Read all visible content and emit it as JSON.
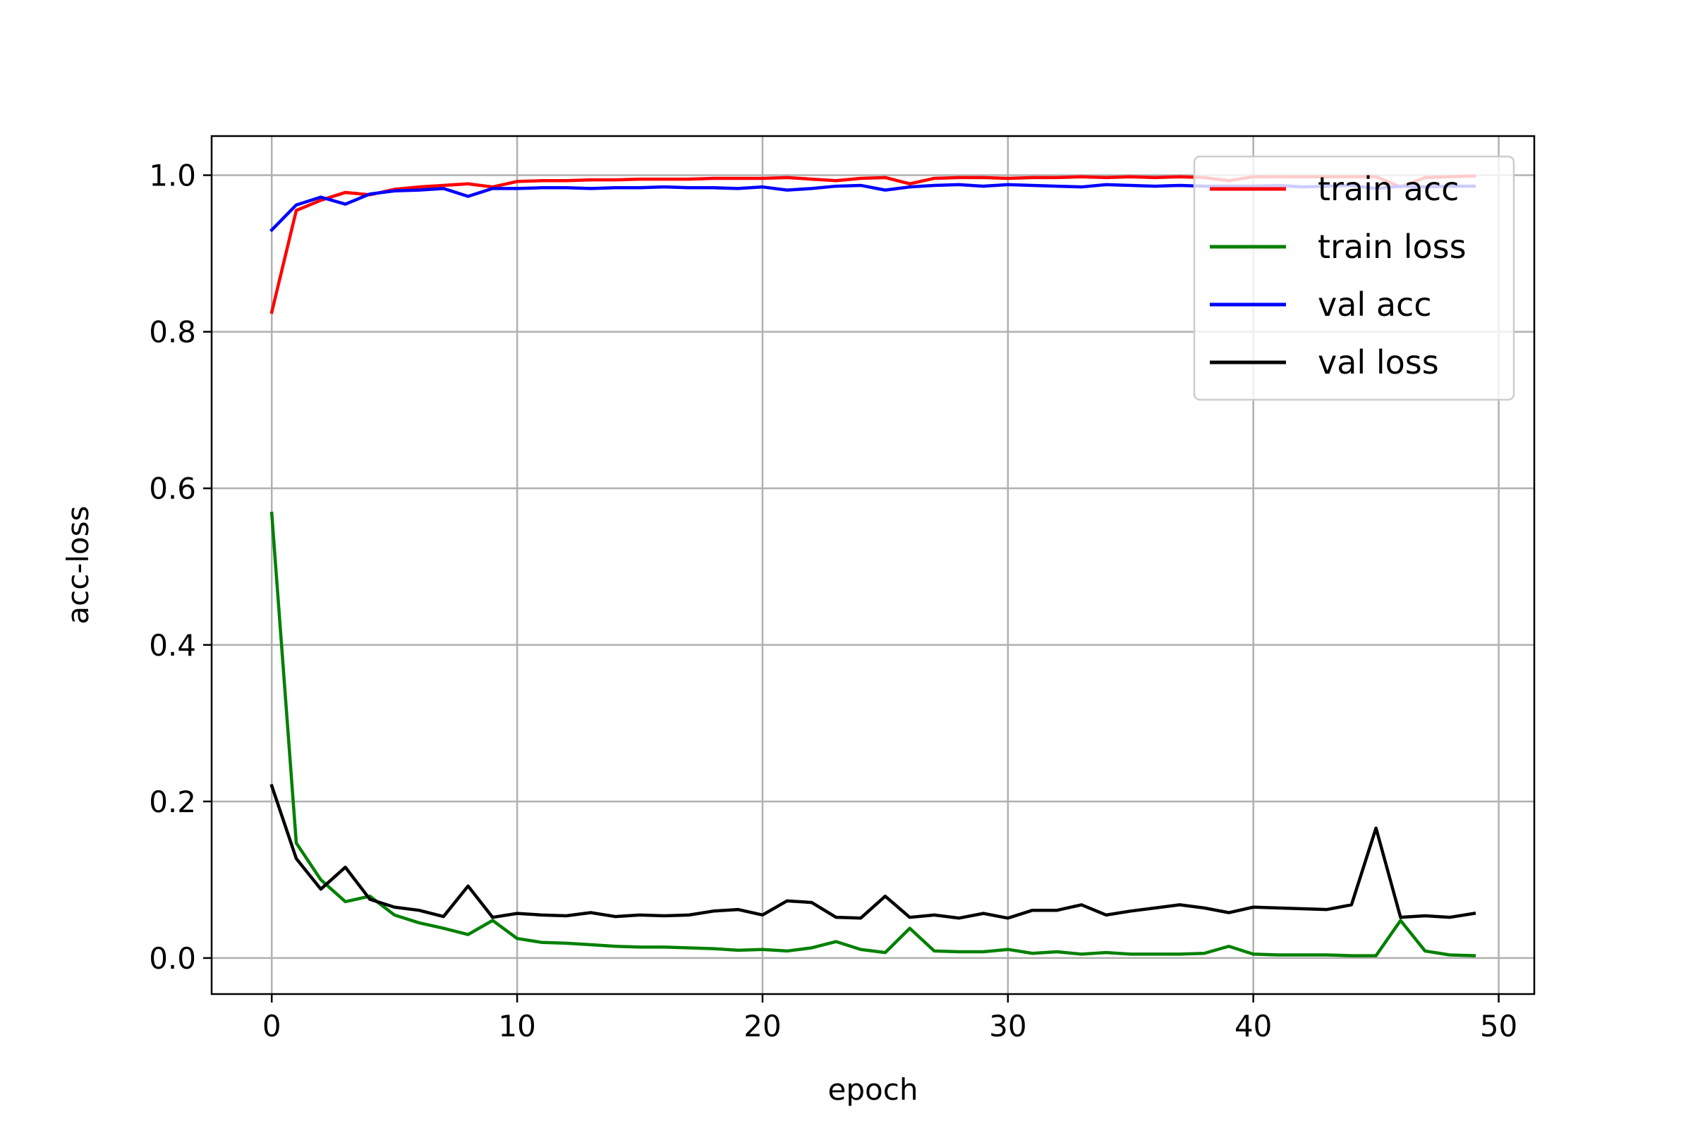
{
  "chart_data": {
    "type": "line",
    "xlabel": "epoch",
    "ylabel": "acc-loss",
    "xlim": [
      -2.45,
      51.45
    ],
    "ylim": [
      -0.046,
      1.05
    ],
    "xticks": [
      0,
      10,
      20,
      30,
      40,
      50
    ],
    "yticks": [
      0.0,
      0.2,
      0.4,
      0.6,
      0.8,
      1.0
    ],
    "xtick_labels": [
      "0",
      "10",
      "20",
      "30",
      "40",
      "50"
    ],
    "ytick_labels": [
      "0.0",
      "0.2",
      "0.4",
      "0.6",
      "0.8",
      "1.0"
    ],
    "grid": true,
    "legend_position": "top-right",
    "x": [
      0,
      1,
      2,
      3,
      4,
      5,
      6,
      7,
      8,
      9,
      10,
      11,
      12,
      13,
      14,
      15,
      16,
      17,
      18,
      19,
      20,
      21,
      22,
      23,
      24,
      25,
      26,
      27,
      28,
      29,
      30,
      31,
      32,
      33,
      34,
      35,
      36,
      37,
      38,
      39,
      40,
      41,
      42,
      43,
      44,
      45,
      46,
      47,
      48,
      49
    ],
    "series": [
      {
        "name": "train acc",
        "color": "#ff0000",
        "values": [
          0.825,
          0.955,
          0.968,
          0.978,
          0.975,
          0.982,
          0.985,
          0.987,
          0.989,
          0.985,
          0.992,
          0.993,
          0.993,
          0.994,
          0.994,
          0.995,
          0.995,
          0.995,
          0.996,
          0.996,
          0.996,
          0.997,
          0.995,
          0.993,
          0.996,
          0.997,
          0.989,
          0.996,
          0.997,
          0.997,
          0.996,
          0.997,
          0.997,
          0.998,
          0.997,
          0.998,
          0.997,
          0.998,
          0.997,
          0.993,
          0.998,
          0.998,
          0.998,
          0.998,
          0.998,
          0.998,
          0.985,
          0.997,
          0.998,
          0.999
        ]
      },
      {
        "name": "train loss",
        "color": "#008000",
        "values": [
          0.568,
          0.147,
          0.1,
          0.072,
          0.079,
          0.055,
          0.045,
          0.038,
          0.03,
          0.048,
          0.025,
          0.02,
          0.019,
          0.017,
          0.015,
          0.014,
          0.014,
          0.013,
          0.012,
          0.01,
          0.011,
          0.009,
          0.013,
          0.021,
          0.011,
          0.007,
          0.038,
          0.009,
          0.008,
          0.008,
          0.011,
          0.006,
          0.008,
          0.005,
          0.007,
          0.005,
          0.005,
          0.005,
          0.006,
          0.015,
          0.005,
          0.004,
          0.004,
          0.004,
          0.003,
          0.003,
          0.048,
          0.009,
          0.004,
          0.003
        ]
      },
      {
        "name": "val acc",
        "color": "#0000ff",
        "values": [
          0.93,
          0.962,
          0.972,
          0.963,
          0.976,
          0.98,
          0.981,
          0.983,
          0.973,
          0.983,
          0.983,
          0.984,
          0.984,
          0.983,
          0.984,
          0.984,
          0.985,
          0.984,
          0.984,
          0.983,
          0.985,
          0.981,
          0.983,
          0.986,
          0.987,
          0.981,
          0.985,
          0.987,
          0.988,
          0.986,
          0.988,
          0.987,
          0.986,
          0.985,
          0.988,
          0.987,
          0.986,
          0.987,
          0.986,
          0.986,
          0.986,
          0.987,
          0.985,
          0.986,
          0.987,
          0.983,
          0.986,
          0.985,
          0.986,
          0.986
        ]
      },
      {
        "name": "val loss",
        "color": "#000000",
        "values": [
          0.22,
          0.127,
          0.088,
          0.116,
          0.075,
          0.065,
          0.061,
          0.053,
          0.092,
          0.052,
          0.057,
          0.055,
          0.054,
          0.058,
          0.053,
          0.055,
          0.054,
          0.055,
          0.06,
          0.062,
          0.055,
          0.073,
          0.071,
          0.052,
          0.051,
          0.079,
          0.052,
          0.055,
          0.051,
          0.057,
          0.051,
          0.061,
          0.061,
          0.068,
          0.055,
          0.06,
          0.064,
          0.068,
          0.064,
          0.058,
          0.065,
          0.064,
          0.063,
          0.062,
          0.068,
          0.166,
          0.052,
          0.054,
          0.052,
          0.057
        ]
      }
    ]
  }
}
